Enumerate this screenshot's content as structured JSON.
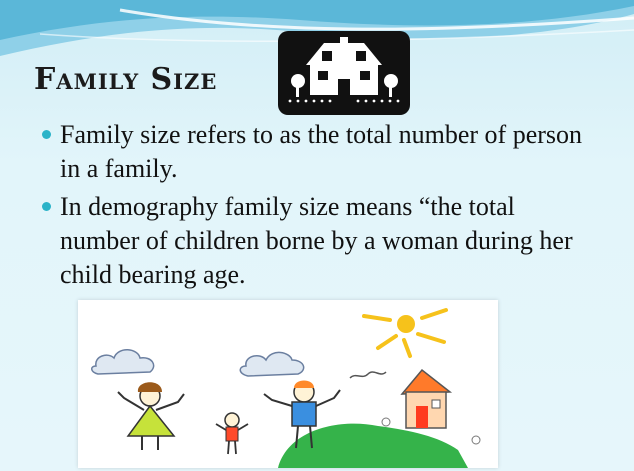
{
  "slide": {
    "title": "Family Size",
    "bullets": [
      "Family size refers to as the total number of person in a family.",
      "In demography family size means “the total number of children borne by a woman during her child bearing age."
    ],
    "colors": {
      "background": "#dff3f8",
      "header_wave": "#5bb7d8",
      "bullet_dot": "#2ab3c8"
    },
    "icons": [
      "house-icon",
      "family-drawing"
    ]
  }
}
